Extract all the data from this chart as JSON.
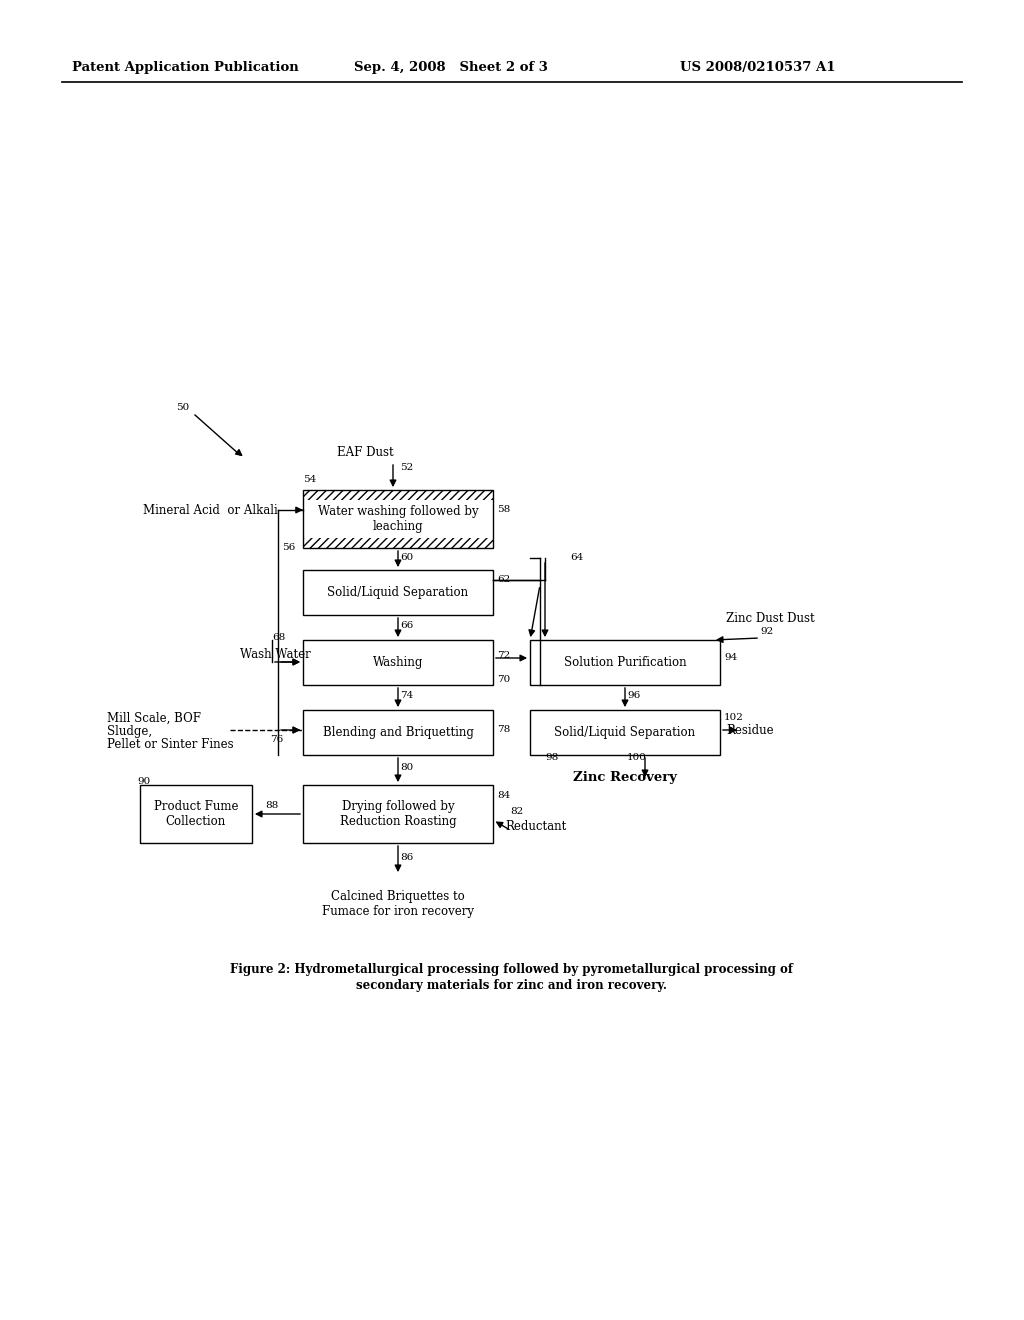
{
  "header_left": "Patent Application Publication",
  "header_mid": "Sep. 4, 2008   Sheet 2 of 3",
  "header_right": "US 2008/0210537 A1",
  "caption_line1": "Figure 2: Hydrometallurgical processing followed by pyrometallurgical processing of",
  "caption_line2": "secondary materials for zinc and iron recovery.",
  "background_color": "#ffffff",
  "figsize": [
    10.24,
    13.2
  ],
  "dpi": 100
}
